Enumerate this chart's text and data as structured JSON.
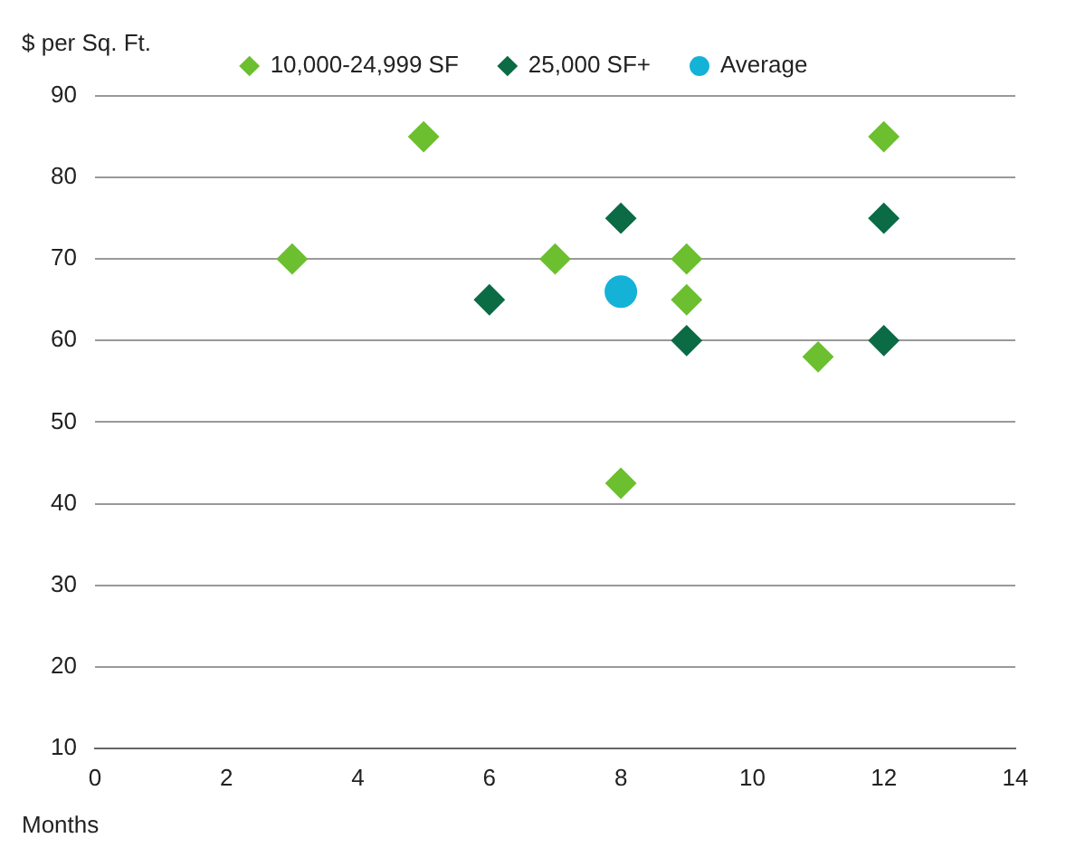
{
  "chart_data": {
    "type": "scatter",
    "ylabel": "$ per Sq. Ft.",
    "xlabel": "Months",
    "xlim": [
      0,
      14
    ],
    "xticks": [
      0,
      2,
      4,
      6,
      8,
      10,
      12,
      14
    ],
    "ylim": [
      10,
      90
    ],
    "yticks": [
      10,
      20,
      30,
      40,
      50,
      60,
      70,
      80,
      90
    ],
    "grid": "y",
    "legend": "top",
    "marker": "diamond",
    "series": [
      {
        "name": "10,000-24,999 SF",
        "color": "#6cbf2f",
        "x": [
          3,
          5,
          7,
          8,
          9,
          9,
          11,
          12
        ],
        "values": [
          70,
          85,
          70,
          42.5,
          70,
          65,
          58,
          85
        ]
      },
      {
        "name": "25,000 SF+",
        "color": "#0b6b45",
        "x": [
          6,
          8,
          9,
          12,
          12
        ],
        "values": [
          65,
          75,
          60,
          75,
          60
        ]
      },
      {
        "name": "Average",
        "color": "#15b2d8",
        "marker": "circle",
        "x": [
          8
        ],
        "values": [
          66
        ]
      }
    ]
  }
}
